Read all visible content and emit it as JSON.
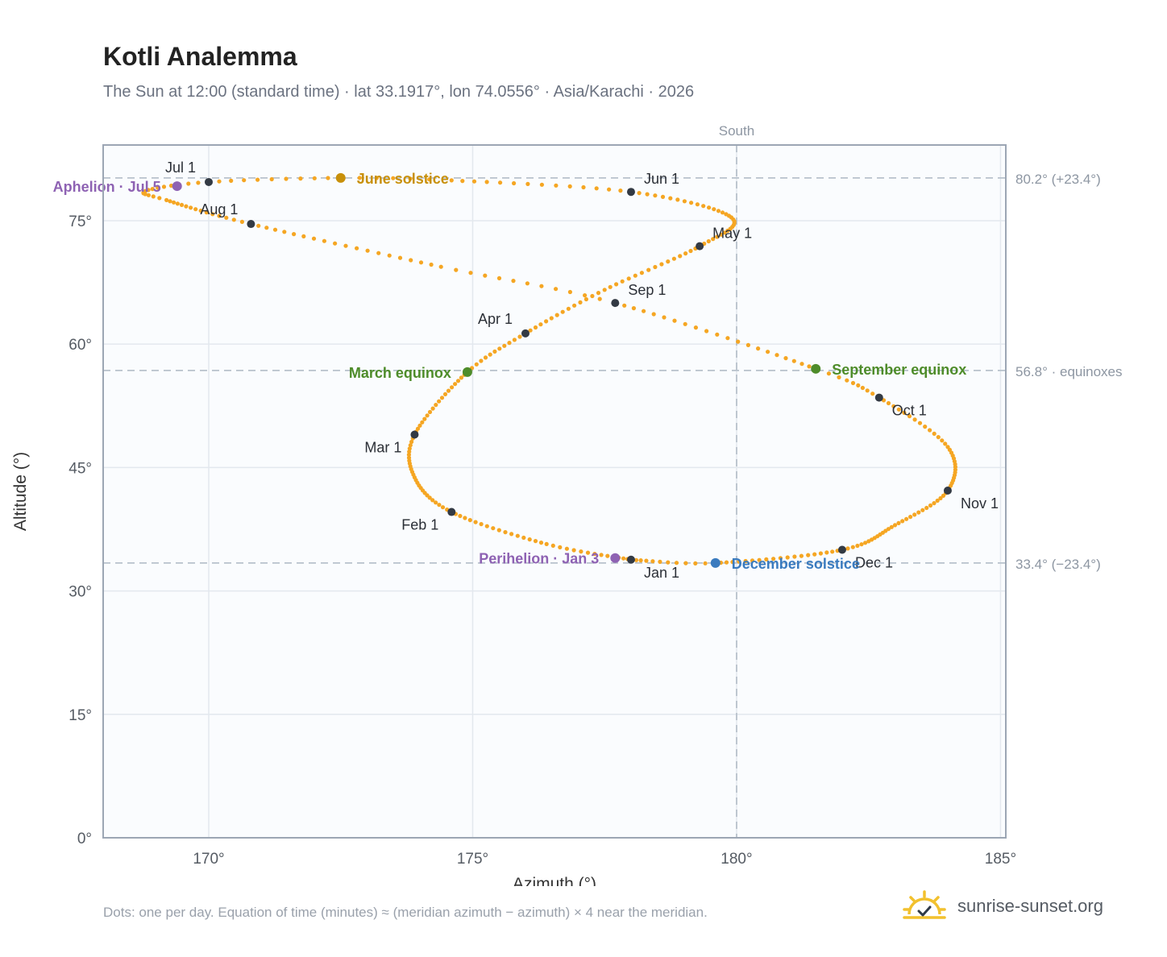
{
  "header": {
    "title": "Kotli Analemma",
    "subtitle": "The Sun at 12:00 (standard time) · lat 33.1917°, lon 74.0556° · Asia/Karachi · 2026"
  },
  "footer": {
    "note": "Dots: one per day. Equation of time (minutes) ≈ (meridian azimuth − azimuth) × 4 near the meridian.",
    "brand": "sunrise-sunset.org"
  },
  "colors": {
    "path": "#f5a623",
    "month_marker": "#333a44",
    "solstice_june": "#c8900a",
    "solstice_december": "#3a7bbf",
    "equinox": "#4e8c2a",
    "apsis": "#8e62b3",
    "reference_line": "#b8c2cc",
    "grid": "#e3e8ee",
    "plot_bg": "#fafcfe",
    "frame": "#9ca6b4"
  },
  "chart_data": {
    "type": "scatter",
    "title": "Kotli Analemma",
    "xlabel": "Azimuth (°)",
    "ylabel": "Altitude (°)",
    "xlim": [
      168,
      185.1
    ],
    "ylim": [
      0,
      84.2
    ],
    "x_ticks": [
      170,
      175,
      180,
      185
    ],
    "x_tick_labels": [
      "170°",
      "175°",
      "180°",
      "185°"
    ],
    "y_ticks": [
      0,
      15,
      30,
      45,
      60,
      75
    ],
    "y_tick_labels": [
      "0°",
      "15°",
      "30°",
      "45°",
      "60°",
      "75°"
    ],
    "grid": true,
    "meridian": {
      "x": 180,
      "label": "South"
    },
    "reference_lines": [
      {
        "y": 80.2,
        "label": "80.2° (+23.4°)"
      },
      {
        "y": 56.8,
        "label": "56.8° · equinoxes"
      },
      {
        "y": 33.4,
        "label": "33.4° (−23.4°)"
      }
    ],
    "daily_path_anchors": [
      {
        "day": 1,
        "az": 178.0,
        "alt": 33.8
      },
      {
        "day": 15,
        "az": 176.4,
        "alt": 35.7
      },
      {
        "day": 32,
        "az": 174.6,
        "alt": 39.6
      },
      {
        "day": 46,
        "az": 173.9,
        "alt": 43.8
      },
      {
        "day": 60,
        "az": 173.9,
        "alt": 49.0
      },
      {
        "day": 79,
        "az": 174.9,
        "alt": 56.6
      },
      {
        "day": 91,
        "az": 176.0,
        "alt": 61.3
      },
      {
        "day": 105,
        "az": 177.5,
        "alt": 66.6
      },
      {
        "day": 121,
        "az": 179.3,
        "alt": 71.9
      },
      {
        "day": 135,
        "az": 179.9,
        "alt": 75.4
      },
      {
        "day": 152,
        "az": 178.0,
        "alt": 78.5
      },
      {
        "day": 166,
        "az": 174.6,
        "alt": 79.9
      },
      {
        "day": 172,
        "az": 172.5,
        "alt": 80.2
      },
      {
        "day": 182,
        "az": 170.0,
        "alt": 79.7
      },
      {
        "day": 191,
        "az": 168.8,
        "alt": 78.6
      },
      {
        "day": 198,
        "az": 169.2,
        "alt": 77.5
      },
      {
        "day": 213,
        "az": 170.8,
        "alt": 74.6
      },
      {
        "day": 232,
        "az": 174.4,
        "alt": 69.4
      },
      {
        "day": 244,
        "az": 177.7,
        "alt": 65.0
      },
      {
        "day": 265,
        "az": 181.5,
        "alt": 57.0
      },
      {
        "day": 274,
        "az": 182.7,
        "alt": 53.5
      },
      {
        "day": 289,
        "az": 184.0,
        "alt": 47.5
      },
      {
        "day": 305,
        "az": 184.0,
        "alt": 42.2
      },
      {
        "day": 320,
        "az": 183.0,
        "alt": 38.0
      },
      {
        "day": 335,
        "az": 182.0,
        "alt": 35.0
      },
      {
        "day": 355,
        "az": 179.6,
        "alt": 33.4
      },
      {
        "day": 365,
        "az": 178.1,
        "alt": 33.75
      }
    ],
    "month_markers": [
      {
        "label": "Jan 1",
        "az": 178.0,
        "alt": 33.8,
        "pos": "below-right"
      },
      {
        "label": "Feb 1",
        "az": 174.6,
        "alt": 39.6,
        "pos": "below-left"
      },
      {
        "label": "Mar 1",
        "az": 173.9,
        "alt": 49.0,
        "pos": "below-left"
      },
      {
        "label": "Apr 1",
        "az": 176.0,
        "alt": 61.3,
        "pos": "above-left"
      },
      {
        "label": "May 1",
        "az": 179.3,
        "alt": 71.9,
        "pos": "above-right"
      },
      {
        "label": "Jun 1",
        "az": 178.0,
        "alt": 78.5,
        "pos": "above-right"
      },
      {
        "label": "Jul 1",
        "az": 170.0,
        "alt": 79.7,
        "pos": "above-left"
      },
      {
        "label": "Aug 1",
        "az": 170.8,
        "alt": 74.6,
        "pos": "above-left"
      },
      {
        "label": "Sep 1",
        "az": 177.7,
        "alt": 65.0,
        "pos": "above-right"
      },
      {
        "label": "Oct 1",
        "az": 182.7,
        "alt": 53.5,
        "pos": "below-right"
      },
      {
        "label": "Nov 1",
        "az": 184.0,
        "alt": 42.2,
        "pos": "below-right"
      },
      {
        "label": "Dec 1",
        "az": 182.0,
        "alt": 35.0,
        "pos": "below-right"
      }
    ],
    "events": [
      {
        "label": "June solstice",
        "az": 172.5,
        "alt": 80.2,
        "kind": "solstice_june",
        "side": "right"
      },
      {
        "label": "December solstice",
        "az": 179.6,
        "alt": 33.4,
        "kind": "solstice_december",
        "side": "right"
      },
      {
        "label": "March equinox",
        "az": 174.9,
        "alt": 56.6,
        "kind": "equinox",
        "side": "left"
      },
      {
        "label": "September equinox",
        "az": 181.5,
        "alt": 57.0,
        "kind": "equinox",
        "side": "right"
      },
      {
        "label": "Aphelion · Jul 5",
        "az": 169.4,
        "alt": 79.2,
        "kind": "apsis",
        "side": "left"
      },
      {
        "label": "Perihelion · Jan 3",
        "az": 177.7,
        "alt": 34.0,
        "kind": "apsis",
        "side": "left"
      }
    ]
  }
}
